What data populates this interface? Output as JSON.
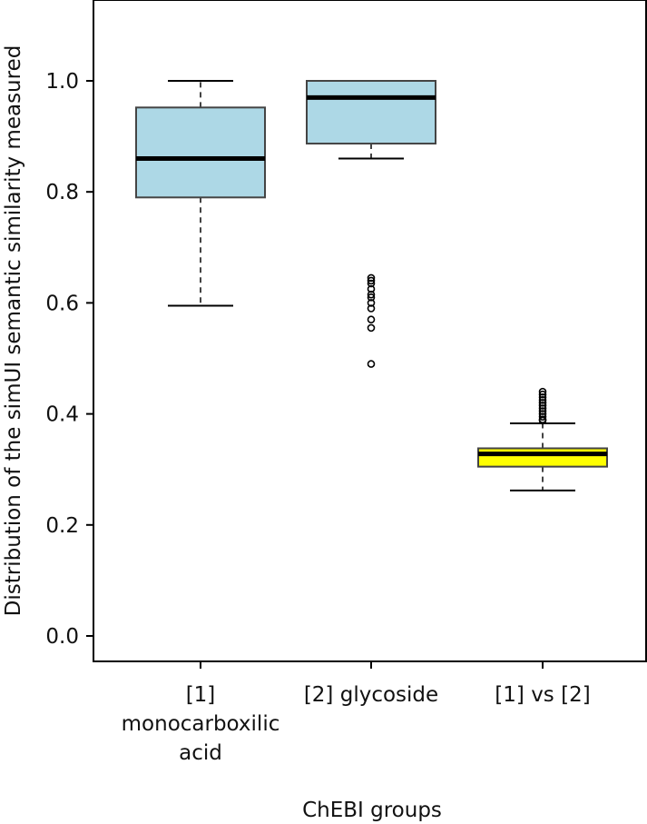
{
  "chart_data": {
    "type": "boxplot",
    "title": "",
    "xlabel": "ChEBI groups",
    "ylabel": "Distribution of the simUI semantic similarity measured",
    "ylim": [
      -0.04,
      1.15
    ],
    "yticks": [
      0.0,
      0.2,
      0.4,
      0.6,
      0.8,
      1.0
    ],
    "ytick_labels": [
      "0.0",
      "0.2",
      "0.4",
      "0.6",
      "0.8",
      "1.0"
    ],
    "grid": false,
    "categories": [
      [
        "[1]",
        "monocarboxilic",
        "acid"
      ],
      [
        "[2] glycoside"
      ],
      [
        "[1] vs [2]"
      ]
    ],
    "boxes": [
      {
        "whisker_low": 0.595,
        "q1": 0.79,
        "median": 0.86,
        "q3": 0.952,
        "whisker_high": 1.0,
        "outliers": [],
        "fill": "#add8e6"
      },
      {
        "whisker_low": 0.86,
        "q1": 0.887,
        "median": 0.97,
        "q3": 1.0,
        "whisker_high": 1.0,
        "outliers": [
          0.645,
          0.64,
          0.635,
          0.625,
          0.615,
          0.61,
          0.6,
          0.59,
          0.57,
          0.555,
          0.49
        ],
        "fill": "#add8e6"
      },
      {
        "whisker_low": 0.262,
        "q1": 0.305,
        "median": 0.328,
        "q3": 0.338,
        "whisker_high": 0.383,
        "outliers": [
          0.44,
          0.435,
          0.43,
          0.425,
          0.42,
          0.415,
          0.41,
          0.405,
          0.4,
          0.395,
          0.39,
          0.388
        ],
        "fill": "#ffff00"
      }
    ]
  }
}
